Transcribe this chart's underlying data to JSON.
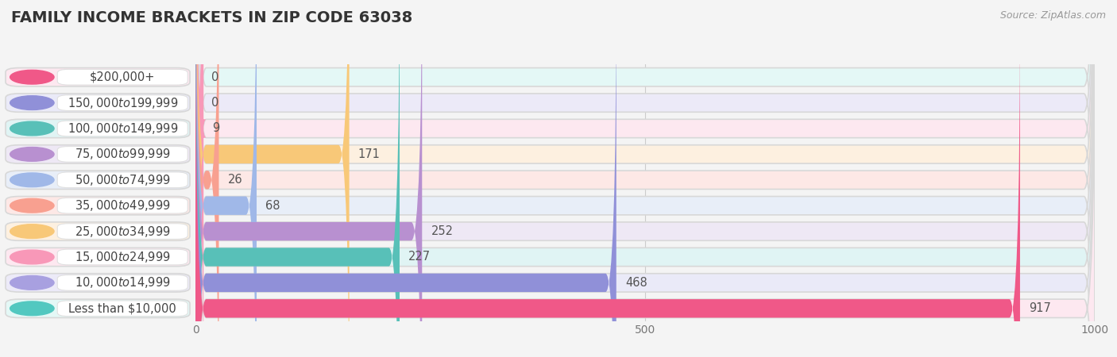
{
  "title": "FAMILY INCOME BRACKETS IN ZIP CODE 63038",
  "source": "Source: ZipAtlas.com",
  "categories": [
    "Less than $10,000",
    "$10,000 to $14,999",
    "$15,000 to $24,999",
    "$25,000 to $34,999",
    "$35,000 to $49,999",
    "$50,000 to $74,999",
    "$75,000 to $99,999",
    "$100,000 to $149,999",
    "$150,000 to $199,999",
    "$200,000+"
  ],
  "values": [
    0,
    0,
    9,
    171,
    26,
    68,
    252,
    227,
    468,
    917
  ],
  "bar_colors": [
    "#52c8c0",
    "#a8a0e0",
    "#f898b8",
    "#f8c878",
    "#f8a090",
    "#a0b8e8",
    "#b890d0",
    "#58c0b8",
    "#9090d8",
    "#f05888"
  ],
  "bg_colors": [
    "#e4f8f6",
    "#eceaf8",
    "#fde8f0",
    "#fdf0e0",
    "#fde8e6",
    "#e8eef8",
    "#eee8f5",
    "#e0f4f4",
    "#eaeaf8",
    "#fde8f0"
  ],
  "xlim": [
    0,
    1000
  ],
  "xticks": [
    0,
    500,
    1000
  ],
  "title_fontsize": 14,
  "label_fontsize": 10.5,
  "value_fontsize": 10.5,
  "source_fontsize": 9,
  "bg_color": "#f4f4f4"
}
